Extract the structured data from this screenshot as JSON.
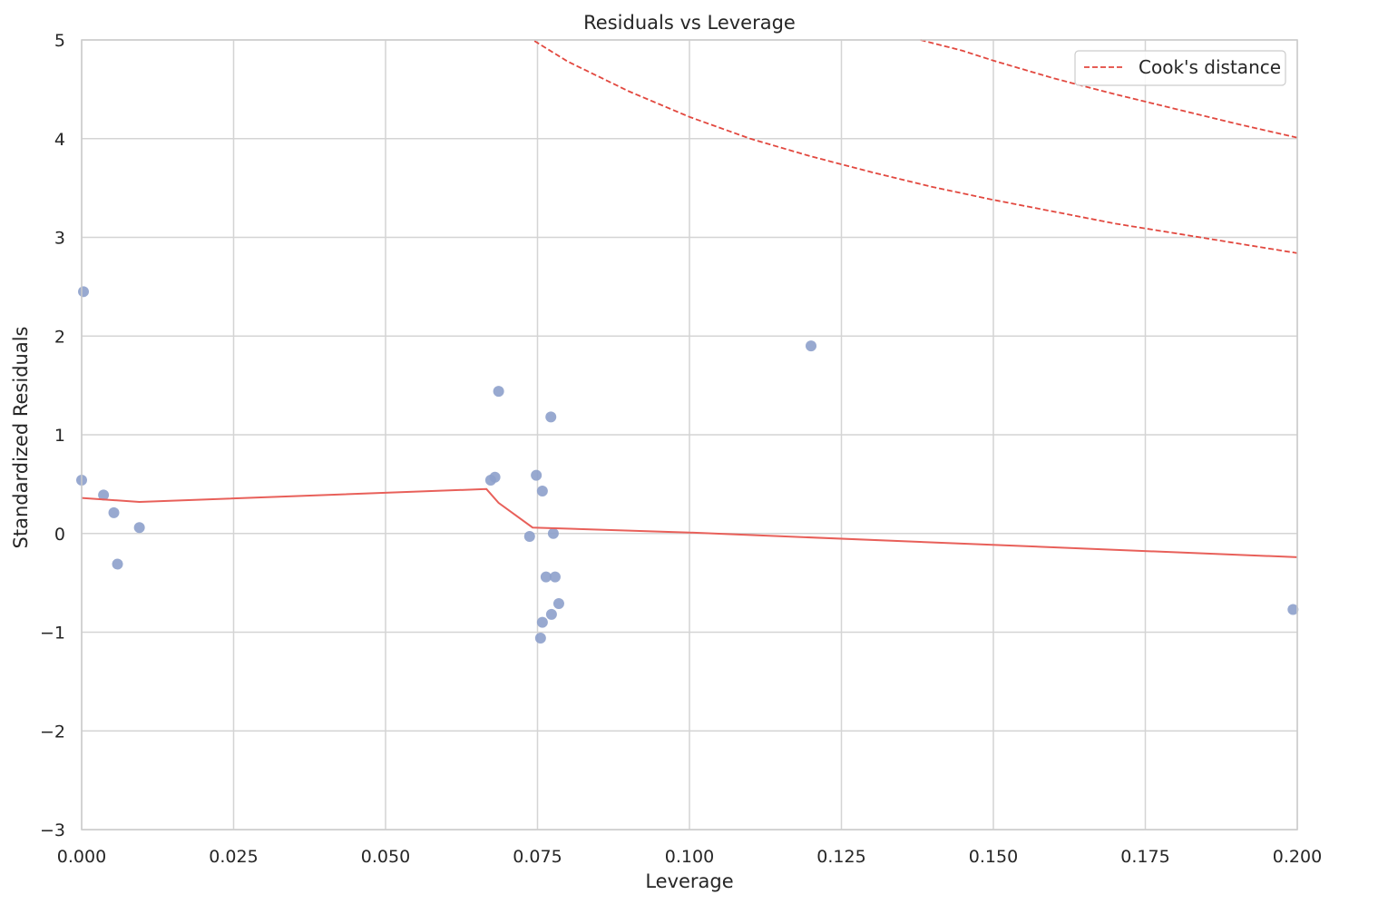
{
  "chart_data": {
    "type": "scatter",
    "title": "Residuals vs Leverage",
    "xlabel": "Leverage",
    "ylabel": "Standardized Residuals",
    "xlim": [
      0,
      0.2
    ],
    "ylim": [
      -3,
      5
    ],
    "x_ticks": [
      "0.000",
      "0.025",
      "0.050",
      "0.075",
      "0.100",
      "0.125",
      "0.150",
      "0.175",
      "0.200"
    ],
    "x_tick_values": [
      0,
      0.025,
      0.05,
      0.075,
      0.1,
      0.125,
      0.15,
      0.175,
      0.2
    ],
    "y_ticks": [
      "−3",
      "−2",
      "−1",
      "0",
      "1",
      "2",
      "3",
      "4",
      "5"
    ],
    "y_tick_values": [
      -3,
      -2,
      -1,
      0,
      1,
      2,
      3,
      4,
      5
    ],
    "grid": true,
    "legend": {
      "position": "top-right",
      "entries": [
        "Cook's distance"
      ]
    },
    "colors": {
      "points": "#8da0cb",
      "trend": "#e8605a",
      "cooks": "#e2483f",
      "grid": "#d4d4d4",
      "axes": "#cccccc"
    },
    "series": [
      {
        "kind": "points",
        "points": [
          {
            "x": 0.0003,
            "y": 2.45
          },
          {
            "x": 0.0,
            "y": 0.54
          },
          {
            "x": 0.0036,
            "y": 0.39
          },
          {
            "x": 0.0053,
            "y": 0.21
          },
          {
            "x": 0.0059,
            "y": -0.31
          },
          {
            "x": 0.0095,
            "y": 0.06
          },
          {
            "x": 0.0686,
            "y": 1.44
          },
          {
            "x": 0.0673,
            "y": 0.54
          },
          {
            "x": 0.068,
            "y": 0.57
          },
          {
            "x": 0.0772,
            "y": 1.18
          },
          {
            "x": 0.0748,
            "y": 0.59
          },
          {
            "x": 0.0758,
            "y": 0.43
          },
          {
            "x": 0.0737,
            "y": -0.03
          },
          {
            "x": 0.0776,
            "y": 0.0
          },
          {
            "x": 0.0764,
            "y": -0.44
          },
          {
            "x": 0.0779,
            "y": -0.44
          },
          {
            "x": 0.0785,
            "y": -0.71
          },
          {
            "x": 0.0773,
            "y": -0.82
          },
          {
            "x": 0.0758,
            "y": -0.9
          },
          {
            "x": 0.0755,
            "y": -1.06
          },
          {
            "x": 0.12,
            "y": 1.9
          },
          {
            "x": 0.1993,
            "y": -0.77
          }
        ]
      },
      {
        "kind": "trend",
        "points": [
          {
            "x": 0.0,
            "y": 0.36
          },
          {
            "x": 0.0095,
            "y": 0.32
          },
          {
            "x": 0.0666,
            "y": 0.45
          },
          {
            "x": 0.0686,
            "y": 0.31
          },
          {
            "x": 0.0742,
            "y": 0.06
          },
          {
            "x": 0.1,
            "y": 0.01
          },
          {
            "x": 0.2,
            "y": -0.24
          }
        ]
      },
      {
        "name": "Cook's distance",
        "kind": "cooks",
        "points": [
          {
            "x": 0.0745,
            "y": 4.99
          },
          {
            "x": 0.08,
            "y": 4.78
          },
          {
            "x": 0.09,
            "y": 4.48
          },
          {
            "x": 0.1,
            "y": 4.22
          },
          {
            "x": 0.11,
            "y": 4.0
          },
          {
            "x": 0.12,
            "y": 3.82
          },
          {
            "x": 0.13,
            "y": 3.66
          },
          {
            "x": 0.14,
            "y": 3.51
          },
          {
            "x": 0.15,
            "y": 3.38
          },
          {
            "x": 0.16,
            "y": 3.26
          },
          {
            "x": 0.17,
            "y": 3.14
          },
          {
            "x": 0.18,
            "y": 3.04
          },
          {
            "x": 0.19,
            "y": 2.94
          },
          {
            "x": 0.2,
            "y": 2.84
          }
        ]
      },
      {
        "name": "Cook's distance",
        "kind": "cooks",
        "points": [
          {
            "x": 0.138,
            "y": 5.0
          },
          {
            "x": 0.145,
            "y": 4.89
          },
          {
            "x": 0.15,
            "y": 4.79
          },
          {
            "x": 0.16,
            "y": 4.61
          },
          {
            "x": 0.17,
            "y": 4.45
          },
          {
            "x": 0.18,
            "y": 4.3
          },
          {
            "x": 0.19,
            "y": 4.15
          },
          {
            "x": 0.2,
            "y": 4.01
          }
        ]
      }
    ]
  }
}
